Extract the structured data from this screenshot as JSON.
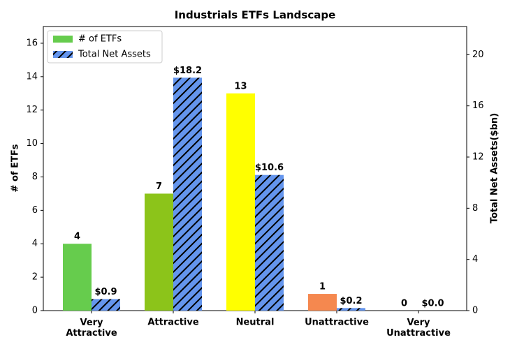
{
  "chart_data": {
    "type": "bar",
    "title": "Industrials ETFs Landscape",
    "categories": [
      "Very\nAttractive",
      "Attractive",
      "Neutral",
      "Unattractive",
      "Very\nUnattractive"
    ],
    "y_label": "# of ETFs",
    "y2_label": "Total Net Assets($bn)",
    "ylim": [
      0,
      17
    ],
    "yticks": [
      0,
      2,
      4,
      6,
      8,
      10,
      12,
      14,
      16
    ],
    "y2lim": [
      0,
      22.2
    ],
    "y2ticks": [
      0,
      4,
      8,
      12,
      16,
      20
    ],
    "legend": "upper left",
    "series": [
      {
        "name": "# of ETFs",
        "colors": [
          "#66cc4d",
          "#8cc41a",
          "#ffff00",
          "#f5884f",
          "#e03b2a"
        ],
        "values": [
          4,
          7,
          13,
          1,
          0
        ]
      },
      {
        "name": "Total Net Assets",
        "color": "#6495ed",
        "hatch": true,
        "axis": "y2",
        "values": [
          0.9,
          18.2,
          10.6,
          0.2,
          0.0
        ],
        "value_labels": [
          "$0.9",
          "$18.2",
          "$10.6",
          "$0.2",
          "$0.0"
        ]
      }
    ]
  }
}
